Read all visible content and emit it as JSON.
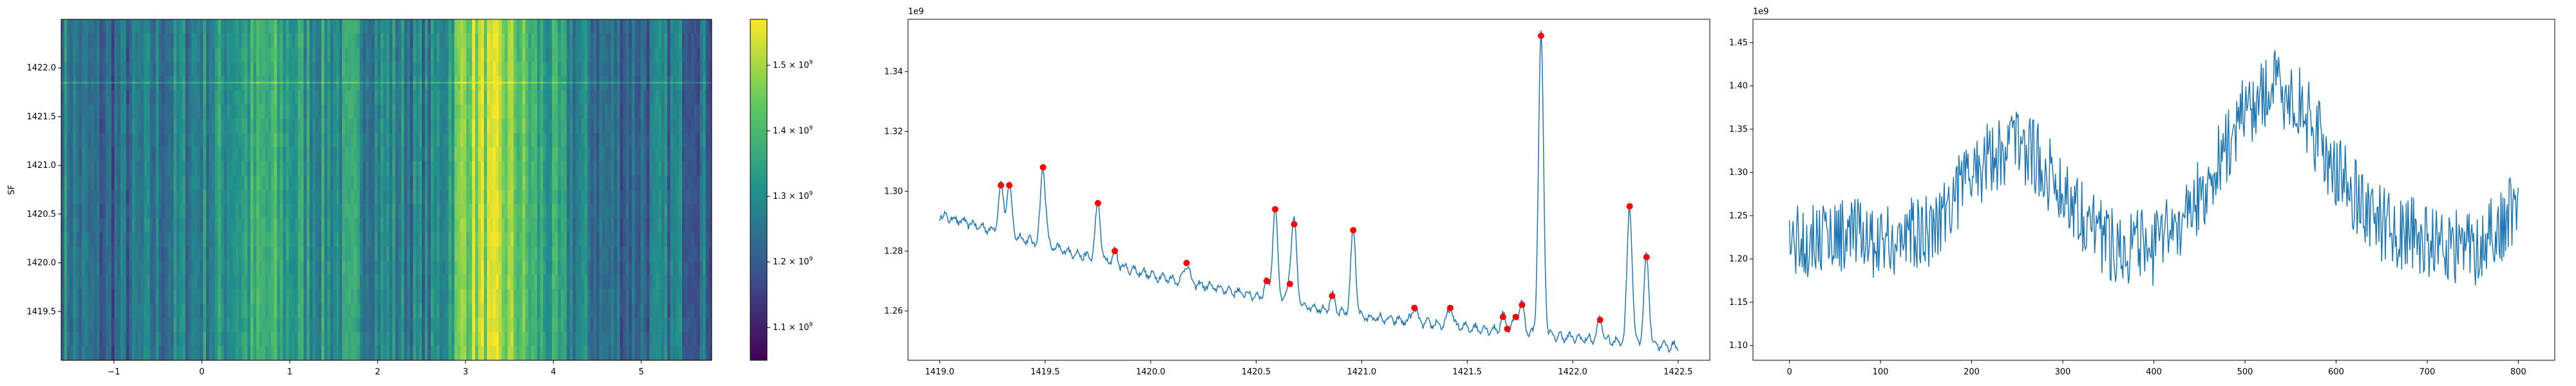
{
  "chart_data": [
    {
      "type": "heatmap",
      "ylabel": "SF",
      "xlim": [
        -1.6,
        5.8
      ],
      "ylim": [
        1419.0,
        1422.5
      ],
      "xticks": [
        "−1",
        "0",
        "1",
        "2",
        "3",
        "4",
        "5"
      ],
      "xtick_values": [
        -1,
        0,
        1,
        2,
        3,
        4,
        5
      ],
      "yticks": [
        "1419.5",
        "1420.0",
        "1420.5",
        "1421.0",
        "1421.5",
        "1422.0"
      ],
      "ytick_values": [
        1419.5,
        1420.0,
        1420.5,
        1421.0,
        1421.5,
        1422.0
      ],
      "colormap": "viridis",
      "colorbar": {
        "range": [
          1050000000.0,
          1570000000.0
        ],
        "tick_values": [
          1100000000.0,
          1200000000.0,
          1300000000.0,
          1400000000.0,
          1500000000.0
        ],
        "tick_mantissas": [
          "1.1",
          "1.2",
          "1.3",
          "1.4",
          "1.5"
        ],
        "tick_base": "× 10",
        "tick_exponent": "9"
      },
      "column_profile": [
        [
          -1.6,
          0.45
        ],
        [
          -1.2,
          0.3
        ],
        [
          -0.8,
          0.35
        ],
        [
          -0.4,
          0.4
        ],
        [
          0.0,
          0.45
        ],
        [
          0.4,
          0.55
        ],
        [
          0.8,
          0.6
        ],
        [
          1.0,
          0.55
        ],
        [
          1.4,
          0.5
        ],
        [
          1.8,
          0.5
        ],
        [
          2.2,
          0.45
        ],
        [
          2.6,
          0.4
        ],
        [
          2.8,
          0.55
        ],
        [
          3.0,
          0.85
        ],
        [
          3.2,
          0.85
        ],
        [
          3.5,
          0.8
        ],
        [
          3.8,
          0.6
        ],
        [
          4.2,
          0.45
        ],
        [
          4.6,
          0.35
        ],
        [
          5.0,
          0.35
        ],
        [
          5.4,
          0.4
        ],
        [
          5.8,
          0.35
        ]
      ],
      "bright_row_y": 1421.85
    },
    {
      "type": "line",
      "offset_label": "1e9",
      "xlim": [
        1418.85,
        1422.65
      ],
      "ylim": [
        1.2435,
        1.3575
      ],
      "xticks": [
        "1419.0",
        "1419.5",
        "1420.0",
        "1420.5",
        "1421.0",
        "1421.5",
        "1422.0",
        "1422.5"
      ],
      "xtick_values": [
        1419.0,
        1419.5,
        1420.0,
        1420.5,
        1421.0,
        1421.5,
        1422.0,
        1422.5
      ],
      "yticks": [
        "1.26",
        "1.28",
        "1.30",
        "1.32",
        "1.34"
      ],
      "ytick_values": [
        1.26,
        1.28,
        1.3,
        1.32,
        1.34
      ],
      "baseline": [
        [
          1419.0,
          1.292
        ],
        [
          1420.0,
          1.272
        ],
        [
          1421.0,
          1.258
        ],
        [
          1422.0,
          1.251
        ],
        [
          1422.5,
          1.248
        ]
      ],
      "peaks": [
        {
          "x": 1419.29,
          "y": 1.302
        },
        {
          "x": 1419.33,
          "y": 1.302
        },
        {
          "x": 1419.49,
          "y": 1.308
        },
        {
          "x": 1419.75,
          "y": 1.296
        },
        {
          "x": 1419.83,
          "y": 1.28
        },
        {
          "x": 1420.17,
          "y": 1.276
        },
        {
          "x": 1420.55,
          "y": 1.27
        },
        {
          "x": 1420.59,
          "y": 1.294
        },
        {
          "x": 1420.66,
          "y": 1.269
        },
        {
          "x": 1420.68,
          "y": 1.289
        },
        {
          "x": 1420.86,
          "y": 1.265
        },
        {
          "x": 1420.96,
          "y": 1.287
        },
        {
          "x": 1421.25,
          "y": 1.261
        },
        {
          "x": 1421.42,
          "y": 1.261
        },
        {
          "x": 1421.67,
          "y": 1.258
        },
        {
          "x": 1421.69,
          "y": 1.254
        },
        {
          "x": 1421.73,
          "y": 1.258
        },
        {
          "x": 1421.76,
          "y": 1.262
        },
        {
          "x": 1421.85,
          "y": 1.352
        },
        {
          "x": 1422.13,
          "y": 1.257
        },
        {
          "x": 1422.27,
          "y": 1.295
        },
        {
          "x": 1422.35,
          "y": 1.278
        }
      ],
      "line_color": "#1f77b4",
      "marker_color": "#ff0000"
    },
    {
      "type": "line",
      "offset_label": "1e9",
      "xlim": [
        -40,
        840
      ],
      "ylim": [
        1.083,
        1.477
      ],
      "xticks": [
        "0",
        "100",
        "200",
        "300",
        "400",
        "500",
        "600",
        "700",
        "800"
      ],
      "xtick_values": [
        0,
        100,
        200,
        300,
        400,
        500,
        600,
        700,
        800
      ],
      "yticks": [
        "1.10",
        "1.15",
        "1.20",
        "1.25",
        "1.30",
        "1.35",
        "1.40",
        "1.45"
      ],
      "ytick_values": [
        1.1,
        1.15,
        1.2,
        1.25,
        1.3,
        1.35,
        1.4,
        1.45
      ],
      "n_points": 801,
      "trend": [
        [
          0,
          1.22
        ],
        [
          50,
          1.23
        ],
        [
          100,
          1.22
        ],
        [
          150,
          1.23
        ],
        [
          200,
          1.3
        ],
        [
          250,
          1.34
        ],
        [
          300,
          1.28
        ],
        [
          350,
          1.22
        ],
        [
          400,
          1.21
        ],
        [
          450,
          1.27
        ],
        [
          500,
          1.37
        ],
        [
          530,
          1.4
        ],
        [
          560,
          1.38
        ],
        [
          600,
          1.3
        ],
        [
          650,
          1.24
        ],
        [
          700,
          1.22
        ],
        [
          750,
          1.21
        ],
        [
          800,
          1.26
        ]
      ],
      "noise_amplitude": 0.045,
      "line_color": "#1f77b4"
    }
  ]
}
